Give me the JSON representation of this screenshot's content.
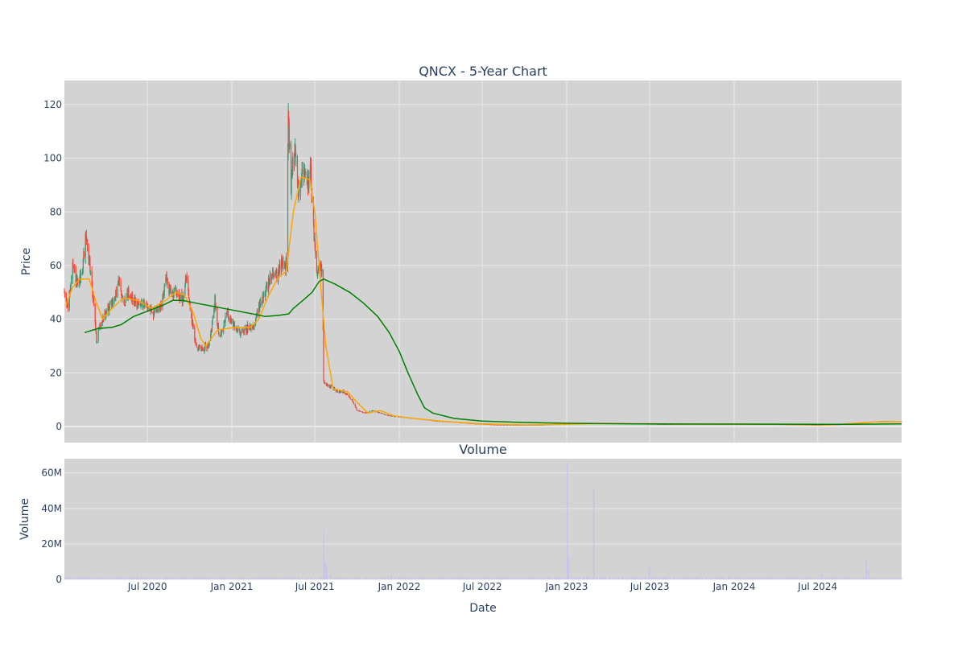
{
  "colors": {
    "background": "#ffffff",
    "plot_bg": "#d3d3d3",
    "grid": "#e8e8ea",
    "text": "#2a3f5f",
    "candle_up": "#3d9970",
    "candle_down": "#ff4136",
    "ma_short": "#ffa500",
    "ma_long": "#008000",
    "volume": "#c6c4e8"
  },
  "chart_data": [
    {
      "type": "candlestick",
      "title": "QNCX - 5-Year Chart",
      "xlabel": "",
      "ylabel": "Price",
      "ylim": [
        -6,
        129
      ],
      "x_range": [
        "2020-01-02",
        "2024-12-31"
      ],
      "yticks": [
        0,
        20,
        40,
        60,
        80,
        100,
        120
      ],
      "grid": true,
      "legend": "none",
      "price_path": [
        [
          "2020-01-02",
          50
        ],
        [
          "2020-01-10",
          44
        ],
        [
          "2020-01-20",
          60
        ],
        [
          "2020-01-31",
          52
        ],
        [
          "2020-02-10",
          58
        ],
        [
          "2020-02-18",
          72
        ],
        [
          "2020-02-26",
          60
        ],
        [
          "2020-03-05",
          48
        ],
        [
          "2020-03-12",
          32
        ],
        [
          "2020-03-20",
          38
        ],
        [
          "2020-03-30",
          42
        ],
        [
          "2020-04-10",
          45
        ],
        [
          "2020-04-20",
          47
        ],
        [
          "2020-05-01",
          55
        ],
        [
          "2020-05-10",
          45
        ],
        [
          "2020-05-20",
          50
        ],
        [
          "2020-06-01",
          47
        ],
        [
          "2020-06-15",
          45
        ],
        [
          "2020-07-01",
          45
        ],
        [
          "2020-07-15",
          42
        ],
        [
          "2020-08-01",
          45
        ],
        [
          "2020-08-10",
          55
        ],
        [
          "2020-08-20",
          50
        ],
        [
          "2020-09-01",
          50
        ],
        [
          "2020-09-15",
          47
        ],
        [
          "2020-09-25",
          56
        ],
        [
          "2020-10-05",
          40
        ],
        [
          "2020-10-15",
          30
        ],
        [
          "2020-11-01",
          29
        ],
        [
          "2020-11-15",
          32
        ],
        [
          "2020-11-25",
          47
        ],
        [
          "2020-12-05",
          33
        ],
        [
          "2020-12-15",
          38
        ],
        [
          "2020-12-22",
          43
        ],
        [
          "2021-01-05",
          37
        ],
        [
          "2021-01-20",
          35
        ],
        [
          "2021-02-05",
          37
        ],
        [
          "2021-02-20",
          38
        ],
        [
          "2021-03-01",
          45
        ],
        [
          "2021-03-15",
          50
        ],
        [
          "2021-03-25",
          55
        ],
        [
          "2021-04-01",
          58
        ],
        [
          "2021-04-10",
          55
        ],
        [
          "2021-04-20",
          62
        ],
        [
          "2021-04-28",
          58
        ],
        [
          "2021-05-01",
          66
        ],
        [
          "2021-05-04",
          117
        ],
        [
          "2021-05-10",
          90
        ],
        [
          "2021-05-18",
          106
        ],
        [
          "2021-05-26",
          88
        ],
        [
          "2021-06-05",
          96
        ],
        [
          "2021-06-15",
          90
        ],
        [
          "2021-06-22",
          95
        ],
        [
          "2021-06-28",
          75
        ],
        [
          "2021-07-05",
          58
        ],
        [
          "2021-07-12",
          60
        ],
        [
          "2021-07-18",
          56
        ],
        [
          "2021-07-20",
          17
        ],
        [
          "2021-07-25",
          15
        ],
        [
          "2021-08-05",
          15
        ],
        [
          "2021-08-20",
          13
        ],
        [
          "2021-09-01",
          13
        ],
        [
          "2021-09-20",
          10
        ],
        [
          "2021-10-01",
          6
        ],
        [
          "2021-10-20",
          5
        ],
        [
          "2021-11-05",
          6
        ],
        [
          "2021-11-20",
          5
        ],
        [
          "2021-12-10",
          4
        ],
        [
          "2022-01-05",
          3.5
        ],
        [
          "2022-02-15",
          2.8
        ],
        [
          "2022-03-20",
          2
        ],
        [
          "2022-05-01",
          1.6
        ],
        [
          "2022-06-15",
          1
        ],
        [
          "2022-08-01",
          0.6
        ],
        [
          "2022-09-15",
          0.5
        ],
        [
          "2022-11-01",
          0.5
        ],
        [
          "2022-12-15",
          0.9
        ],
        [
          "2023-02-01",
          1.2
        ],
        [
          "2023-04-01",
          1.1
        ],
        [
          "2023-06-01",
          1
        ],
        [
          "2023-08-01",
          0.8
        ],
        [
          "2023-10-01",
          0.9
        ],
        [
          "2023-12-01",
          1
        ],
        [
          "2024-02-01",
          1
        ],
        [
          "2024-04-01",
          0.8
        ],
        [
          "2024-06-01",
          0.6
        ],
        [
          "2024-07-01",
          0.5
        ],
        [
          "2024-09-01",
          0.8
        ],
        [
          "2024-10-15",
          1.5
        ],
        [
          "2024-11-15",
          2
        ],
        [
          "2024-12-31",
          1.8
        ]
      ],
      "ma_short": {
        "color": "#ffa500",
        "values": [
          [
            "2020-01-05",
            45
          ],
          [
            "2020-01-20",
            52
          ],
          [
            "2020-02-05",
            55
          ],
          [
            "2020-02-25",
            55
          ],
          [
            "2020-03-10",
            47
          ],
          [
            "2020-03-25",
            40
          ],
          [
            "2020-04-15",
            44
          ],
          [
            "2020-05-10",
            48
          ],
          [
            "2020-06-10",
            47
          ],
          [
            "2020-07-10",
            44
          ],
          [
            "2020-08-10",
            47
          ],
          [
            "2020-09-01",
            50
          ],
          [
            "2020-09-20",
            49
          ],
          [
            "2020-10-10",
            42
          ],
          [
            "2020-10-25",
            33
          ],
          [
            "2020-11-05",
            30
          ],
          [
            "2020-12-01",
            36
          ],
          [
            "2021-01-10",
            37
          ],
          [
            "2021-02-10",
            37
          ],
          [
            "2021-03-01",
            40
          ],
          [
            "2021-03-20",
            48
          ],
          [
            "2021-04-10",
            55
          ],
          [
            "2021-04-30",
            58
          ],
          [
            "2021-05-15",
            80
          ],
          [
            "2021-06-01",
            93
          ],
          [
            "2021-06-20",
            92
          ],
          [
            "2021-07-01",
            80
          ],
          [
            "2021-07-15",
            50
          ],
          [
            "2021-07-25",
            30
          ],
          [
            "2021-08-10",
            14
          ],
          [
            "2021-09-10",
            13
          ],
          [
            "2021-10-01",
            9
          ],
          [
            "2021-10-25",
            5
          ],
          [
            "2021-11-20",
            6
          ],
          [
            "2021-12-20",
            4
          ],
          [
            "2022-02-01",
            3
          ],
          [
            "2022-04-01",
            2
          ],
          [
            "2022-07-01",
            1
          ],
          [
            "2022-10-01",
            0.6
          ],
          [
            "2023-01-01",
            0.8
          ],
          [
            "2023-04-01",
            1.1
          ],
          [
            "2023-10-01",
            0.9
          ],
          [
            "2024-04-01",
            0.8
          ],
          [
            "2024-08-01",
            0.6
          ],
          [
            "2024-11-01",
            1.7
          ],
          [
            "2024-12-31",
            1.8
          ]
        ]
      },
      "ma_long": {
        "color": "#008000",
        "values": [
          [
            "2020-02-15",
            35
          ],
          [
            "2020-03-15",
            36.5
          ],
          [
            "2020-04-15",
            37
          ],
          [
            "2020-05-05",
            38
          ],
          [
            "2020-06-01",
            41
          ],
          [
            "2020-07-01",
            43
          ],
          [
            "2020-08-01",
            45
          ],
          [
            "2020-08-25",
            47
          ],
          [
            "2020-09-15",
            47
          ],
          [
            "2020-10-15",
            46
          ],
          [
            "2020-11-15",
            45
          ],
          [
            "2020-12-15",
            44
          ],
          [
            "2021-01-15",
            43
          ],
          [
            "2021-02-15",
            42
          ],
          [
            "2021-03-15",
            41
          ],
          [
            "2021-04-15",
            41.5
          ],
          [
            "2021-05-05",
            42
          ],
          [
            "2021-05-15",
            44
          ],
          [
            "2021-06-05",
            47
          ],
          [
            "2021-06-25",
            50
          ],
          [
            "2021-07-10",
            54
          ],
          [
            "2021-07-20",
            55
          ],
          [
            "2021-08-15",
            53
          ],
          [
            "2021-09-15",
            50
          ],
          [
            "2021-10-15",
            46
          ],
          [
            "2021-11-15",
            41
          ],
          [
            "2021-12-10",
            35
          ],
          [
            "2022-01-01",
            28
          ],
          [
            "2022-01-20",
            20
          ],
          [
            "2022-02-10",
            12
          ],
          [
            "2022-02-25",
            7
          ],
          [
            "2022-03-15",
            5
          ],
          [
            "2022-05-01",
            3
          ],
          [
            "2022-07-01",
            2
          ],
          [
            "2022-10-01",
            1.5
          ],
          [
            "2023-01-01",
            1.2
          ],
          [
            "2023-06-01",
            1
          ],
          [
            "2024-01-01",
            0.9
          ],
          [
            "2024-09-01",
            0.8
          ],
          [
            "2024-12-31",
            1
          ]
        ]
      }
    },
    {
      "type": "bar",
      "title": "Volume",
      "xlabel": "Date",
      "ylabel": "Volume",
      "ylim": [
        0,
        68000000
      ],
      "yticks": [
        0,
        20000000,
        40000000,
        60000000
      ],
      "ytick_labels": [
        "0",
        "20M",
        "40M",
        "60M"
      ],
      "xticks": [
        "2020-07-01",
        "2021-01-01",
        "2021-07-01",
        "2022-01-01",
        "2022-07-01",
        "2023-01-01",
        "2023-07-01",
        "2024-01-01",
        "2024-07-01"
      ],
      "xtick_labels": [
        "Jul 2020",
        "Jan 2021",
        "Jul 2021",
        "Jan 2022",
        "Jul 2022",
        "Jan 2023",
        "Jul 2023",
        "Jan 2024",
        "Jul 2024"
      ],
      "baseline_volume": 800000,
      "spikes": [
        [
          "2021-07-20",
          28000000
        ],
        [
          "2021-07-22",
          12000000
        ],
        [
          "2021-07-25",
          9000000
        ],
        [
          "2021-07-27",
          6000000
        ],
        [
          "2021-08-05",
          3000000
        ],
        [
          "2021-12-15",
          2500000
        ],
        [
          "2023-01-02",
          66000000
        ],
        [
          "2023-01-05",
          12000000
        ],
        [
          "2023-03-01",
          51000000
        ],
        [
          "2023-06-30",
          8000000
        ],
        [
          "2024-07-10",
          3000000
        ],
        [
          "2024-10-15",
          11000000
        ],
        [
          "2024-10-20",
          5000000
        ]
      ]
    }
  ]
}
